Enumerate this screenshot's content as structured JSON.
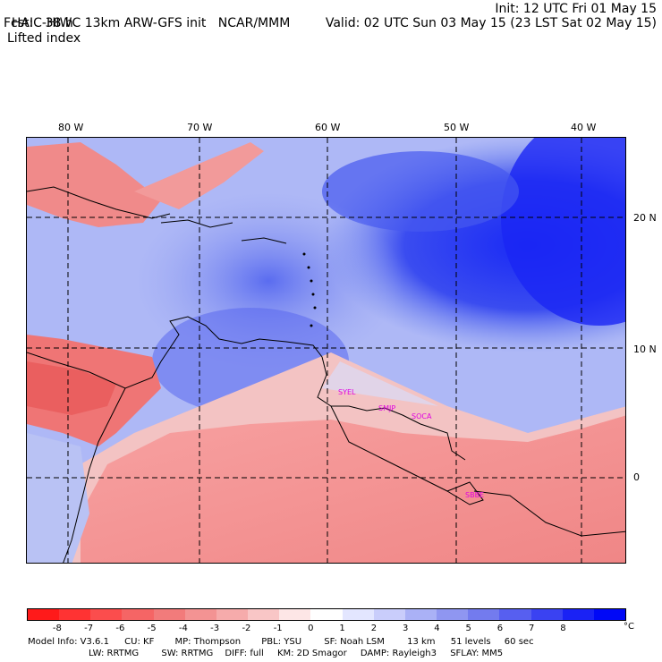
{
  "header": {
    "title": "HAIC-HIWC 13km ARW-GFS init",
    "org": "NCAR/MMM",
    "forecast": "Fcst:   38 h",
    "field": "Lifted index",
    "init": "Init: 12 UTC Fri 01 May 15",
    "valid": "Valid: 02 UTC Sun 03 May 15 (23 LST Sat 02 May 15)"
  },
  "axes": {
    "lon_labels": [
      "80 W",
      "70 W",
      "60 W",
      "50 W",
      "40 W"
    ],
    "lat_labels": [
      "20 N",
      "10 N",
      "0"
    ]
  },
  "stations": [
    "SYEL",
    "SMJP",
    "SOCA",
    "SBBE"
  ],
  "colorbar": {
    "labels": [
      "-8",
      "-7",
      "-6",
      "-5",
      "-4",
      "-3",
      "-2",
      "-1",
      "0",
      "1",
      "2",
      "3",
      "4",
      "5",
      "6",
      "7",
      "8"
    ],
    "unit": "°C",
    "colors": [
      "#ff1a1a",
      "#ff3333",
      "#fb4d4d",
      "#f56565",
      "#f27b7b",
      "#f39393",
      "#f6abab",
      "#f9c6c6",
      "#fde6e6",
      "#ffffff",
      "#e3e6ff",
      "#c9cdfb",
      "#aab1f6",
      "#8f96f1",
      "#737bee",
      "#575ff0",
      "#3a42f2",
      "#1a22f5",
      "#0008f7"
    ]
  },
  "model_info": {
    "line1": [
      "Model Info: V3.6.1",
      "CU: KF",
      "MP: Thompson",
      "PBL: YSU",
      "SF: Noah LSM",
      "13 km",
      "51 levels",
      "60 sec"
    ],
    "line2": [
      "LW: RRTMG",
      "SW: RRTMG",
      "DIFF: full",
      "KM: 2D Smagor",
      "DAMP: Rayleigh3",
      "SFLAY: MM5"
    ]
  }
}
